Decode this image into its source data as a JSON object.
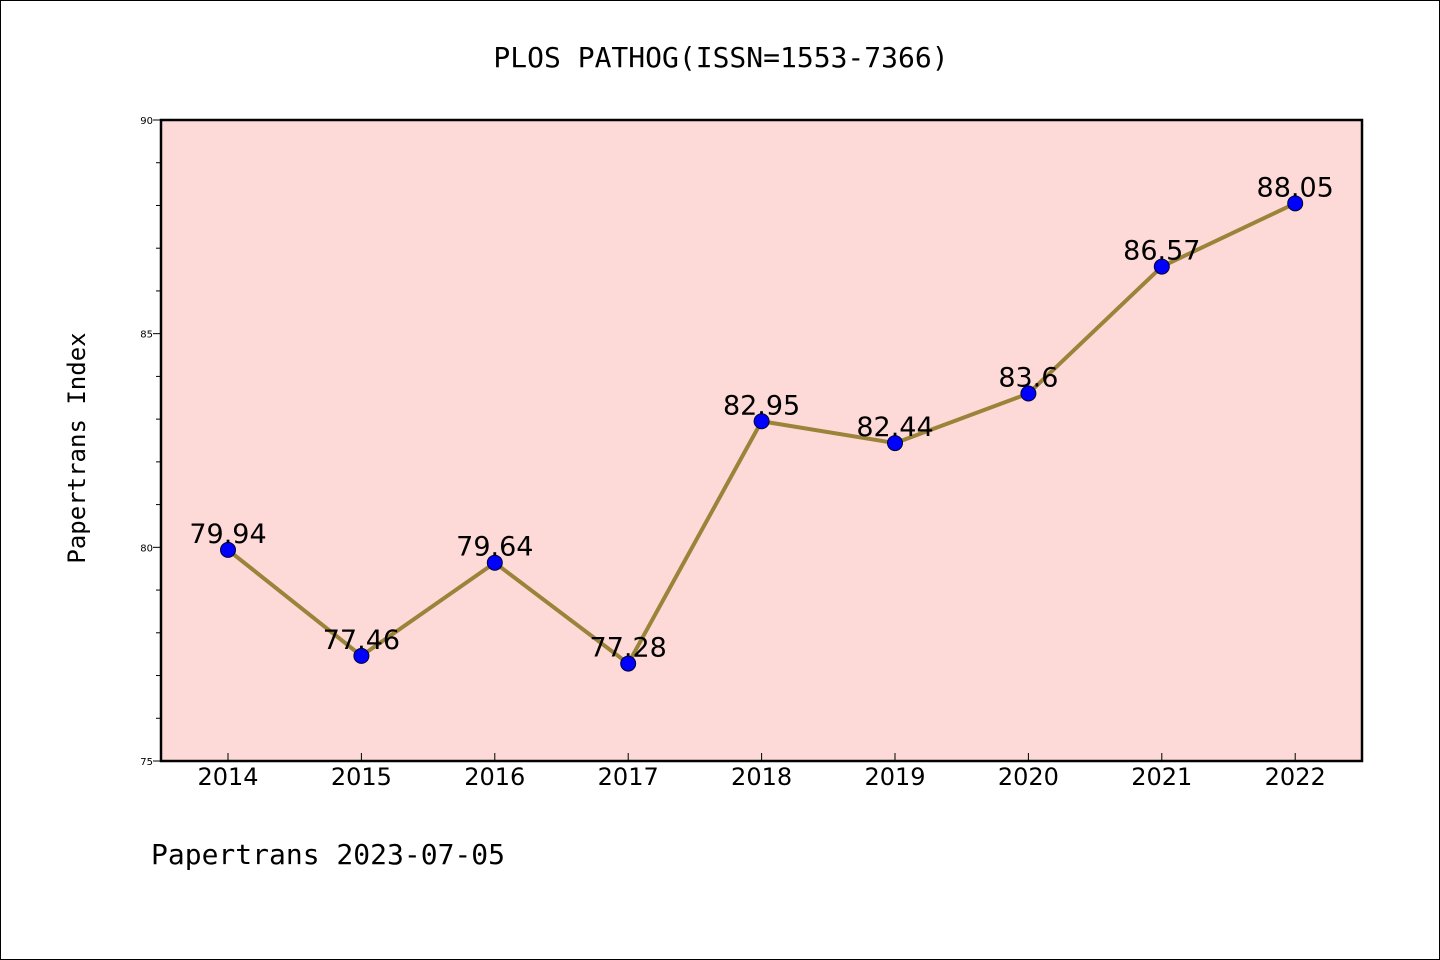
{
  "chart_data": {
    "type": "line",
    "title": "PLOS PATHOG(ISSN=1553-7366)",
    "ylabel": "Papertrans Index",
    "xlabel": "",
    "categories": [
      "2014",
      "2015",
      "2016",
      "2017",
      "2018",
      "2019",
      "2020",
      "2021",
      "2022"
    ],
    "values": [
      79.94,
      77.46,
      79.64,
      77.28,
      82.95,
      82.44,
      83.6,
      86.57,
      88.05
    ],
    "data_labels": [
      "79.94",
      "77.46",
      "79.64",
      "77.28",
      "82.95",
      "82.44",
      "83.6",
      "86.57",
      "88.05"
    ],
    "ylim": [
      75,
      90
    ],
    "yticks": [
      "75",
      "80",
      "85",
      "90"
    ],
    "grid": false,
    "colors": {
      "plot_background": "#fddad8",
      "line": "#9b8339",
      "marker": "#0000ff",
      "marker_edge": "#000033"
    }
  },
  "footer": {
    "text": "Papertrans 2023-07-05"
  }
}
